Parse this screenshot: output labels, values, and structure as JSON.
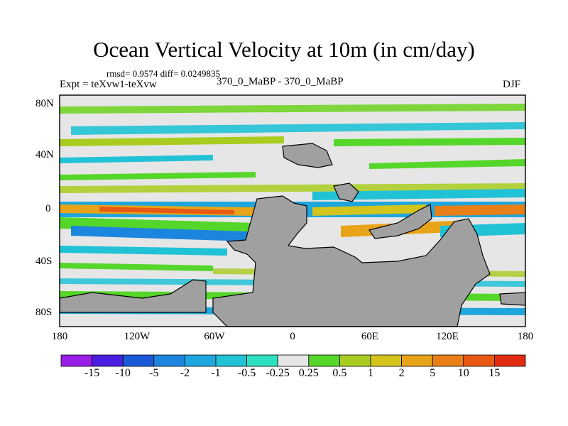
{
  "title": "Ocean Vertical Velocity at 10m (in cm/day)",
  "stats": "rmsd= 0.9574 diff= 0.0249835",
  "experiment": "Expt = teXvw1-teXvw",
  "center_label": "370_0_MaBP - 370_0_MaBP",
  "season": "DJF",
  "map": {
    "lon_labels": [
      "180",
      "120W",
      "60W",
      "0",
      "60E",
      "120E",
      "180"
    ],
    "lat_labels": [
      "80N",
      "40N",
      "0",
      "40S",
      "80S"
    ],
    "background_color": "#e6e6e6",
    "land_color": "#a0a0a0"
  },
  "colorbar": {
    "labels": [
      "-15",
      "-10",
      "-5",
      "-2",
      "-1",
      "-0.5",
      "-0.25",
      "0.25",
      "0.5",
      "1",
      "2",
      "5",
      "10",
      "15"
    ],
    "colors": [
      "#9a1fe8",
      "#4a1ee0",
      "#1a5ad9",
      "#1c86de",
      "#1fa6dc",
      "#21c2d6",
      "#2ee0c0",
      "#e6e6e6",
      "#55d62a",
      "#a8cc1f",
      "#d4c41c",
      "#e8a419",
      "#e87f17",
      "#e85a14",
      "#e02b10"
    ]
  }
}
